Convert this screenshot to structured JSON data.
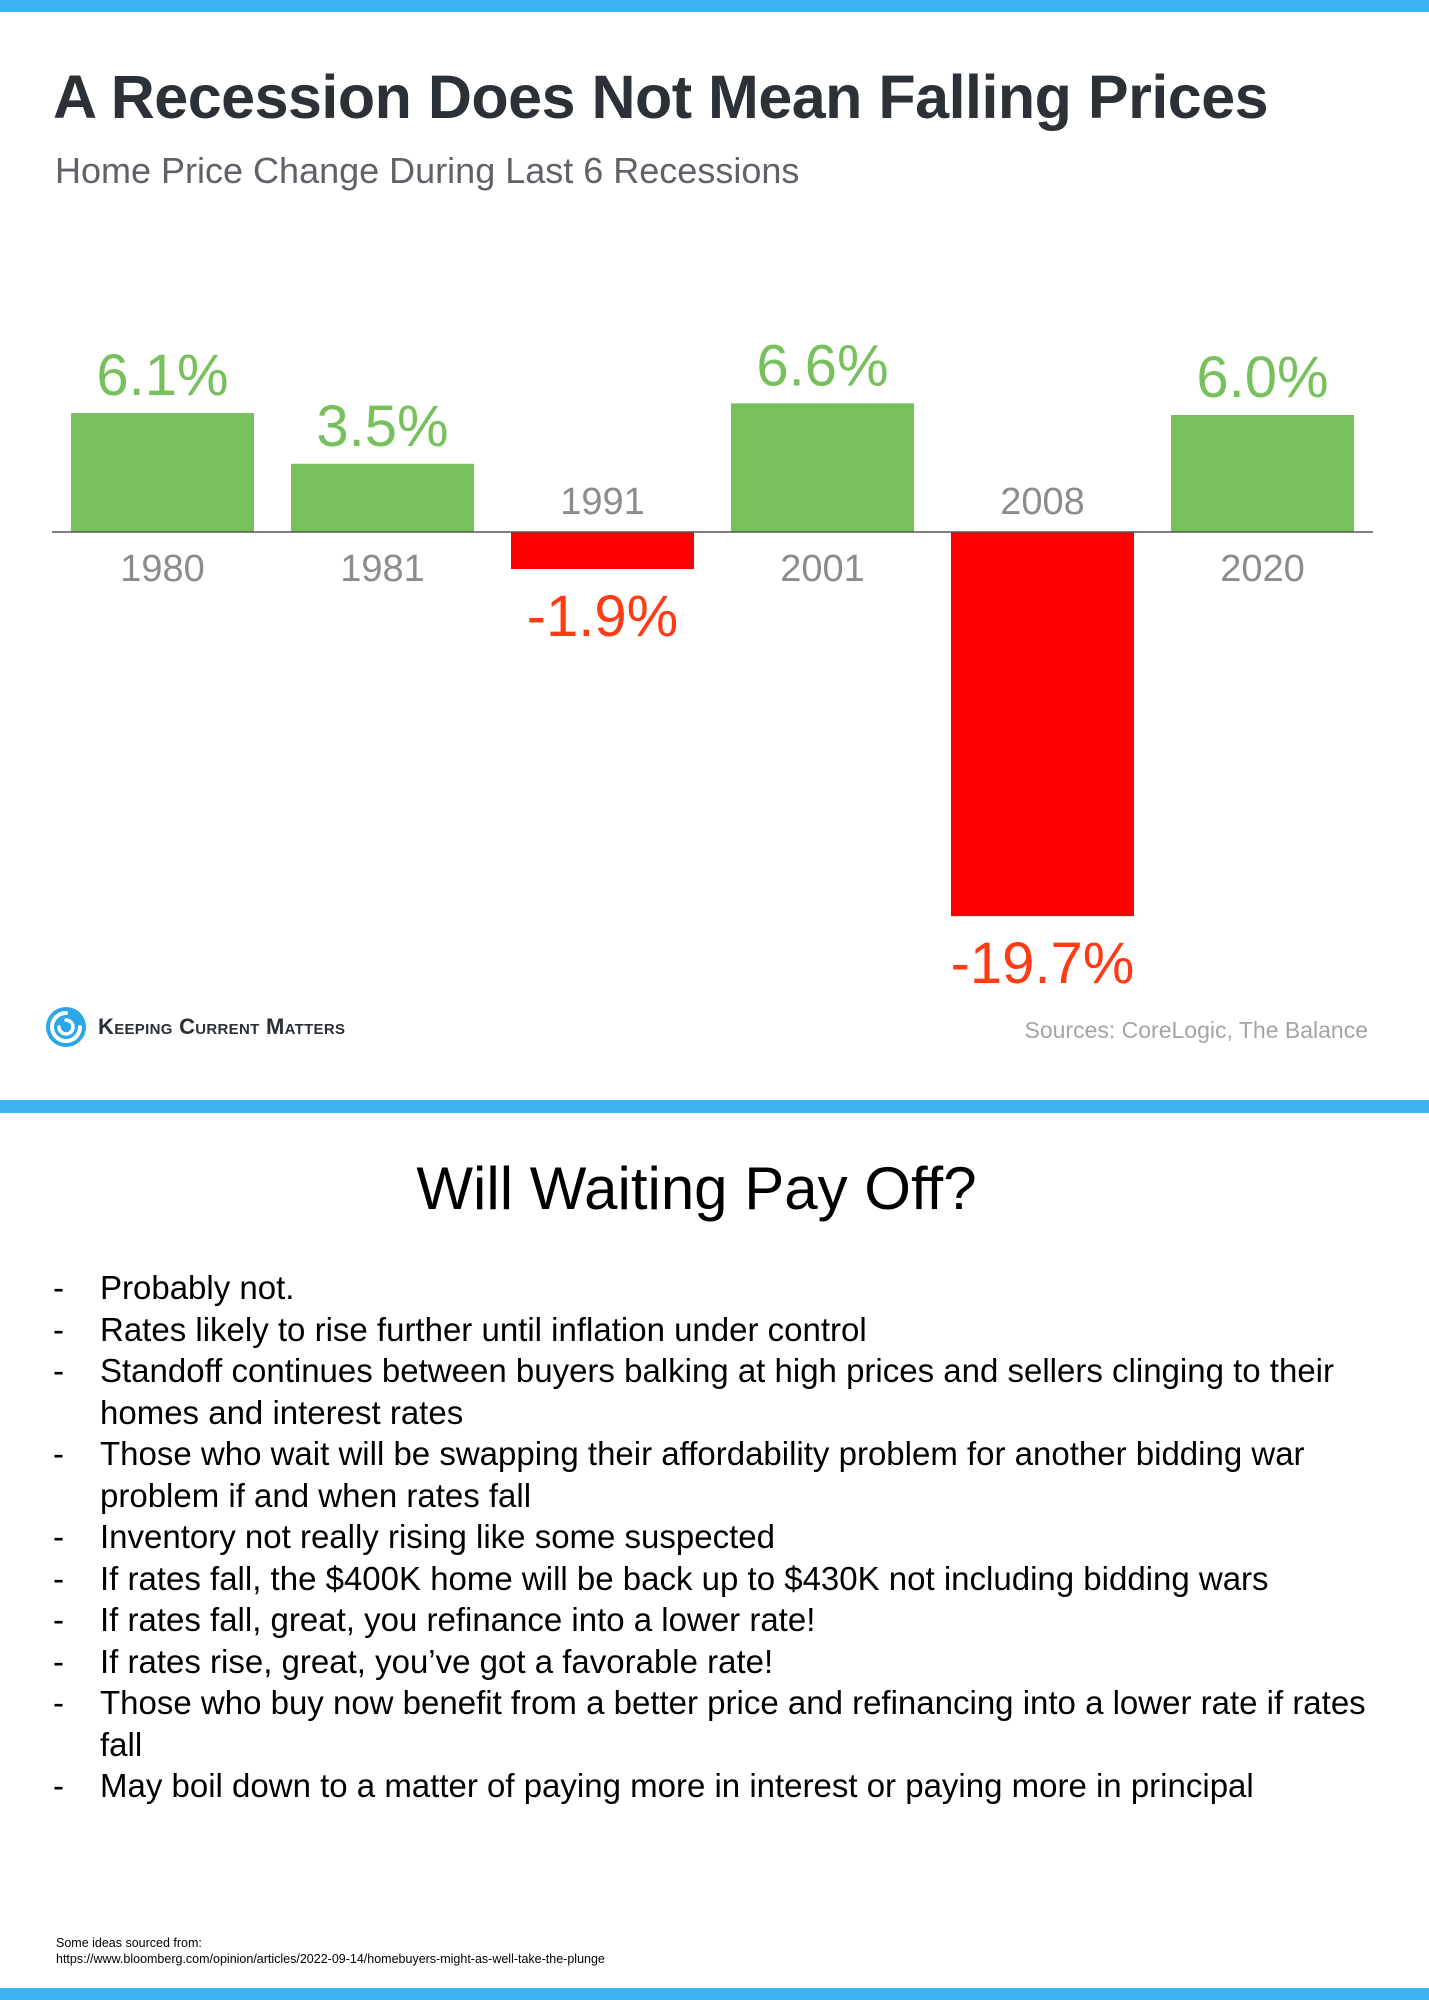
{
  "colors": {
    "stripe": "#3db4f2",
    "positive": "#77c15d",
    "negative": "#ff0000",
    "negative_label": "#ff3b16",
    "year_label": "#8a8c90"
  },
  "header": {
    "title": "A Recession Does Not Mean Falling Prices",
    "subtitle": "Home Price Change During Last 6 Recessions"
  },
  "chart_data": {
    "type": "bar",
    "title": "A Recession Does Not Mean Falling Prices",
    "subtitle": "Home Price Change During Last 6 Recessions",
    "categories": [
      "1980",
      "1981",
      "1991",
      "2001",
      "2008",
      "2020"
    ],
    "values": [
      6.1,
      3.5,
      -1.9,
      6.6,
      -19.7,
      6.0
    ],
    "value_labels": [
      "6.1%",
      "3.5%",
      "-1.9%",
      "6.6%",
      "-19.7%",
      "6.0%"
    ],
    "unit": "%",
    "ylim": [
      -19.7,
      6.6
    ],
    "grid": false,
    "legend": "none"
  },
  "branding": {
    "logo_text": "Keeping Current Matters",
    "logo_icon": "swirl-logo-icon",
    "sources": "Sources: CoreLogic, The Balance"
  },
  "notes": {
    "heading": "Will Waiting Pay Off?",
    "bullet_marker": "-",
    "bullets": [
      "Probably not.",
      "Rates likely to rise further until inflation under control",
      "Standoff continues between buyers balking at high prices and sellers clinging to their homes and interest rates",
      "Those who wait will be swapping their affordability problem for another bidding war problem if and when rates fall",
      "Inventory not really rising like some suspected",
      "If rates fall, the $400K home will be back up to $430K not including bidding wars",
      "If rates fall, great, you refinance into a lower rate!",
      "If rates rise, great, you’ve got a favorable rate!",
      "Those who buy now benefit from a better price and refinancing into a lower rate if rates fall",
      "May boil down to a matter of paying more in interest or paying more in principal"
    ]
  },
  "footnote": {
    "line1": "Some ideas sourced from:",
    "line2": "https://www.bloomberg.com/opinion/articles/2022-09-14/homebuyers-might-as-well-take-the-plunge"
  }
}
